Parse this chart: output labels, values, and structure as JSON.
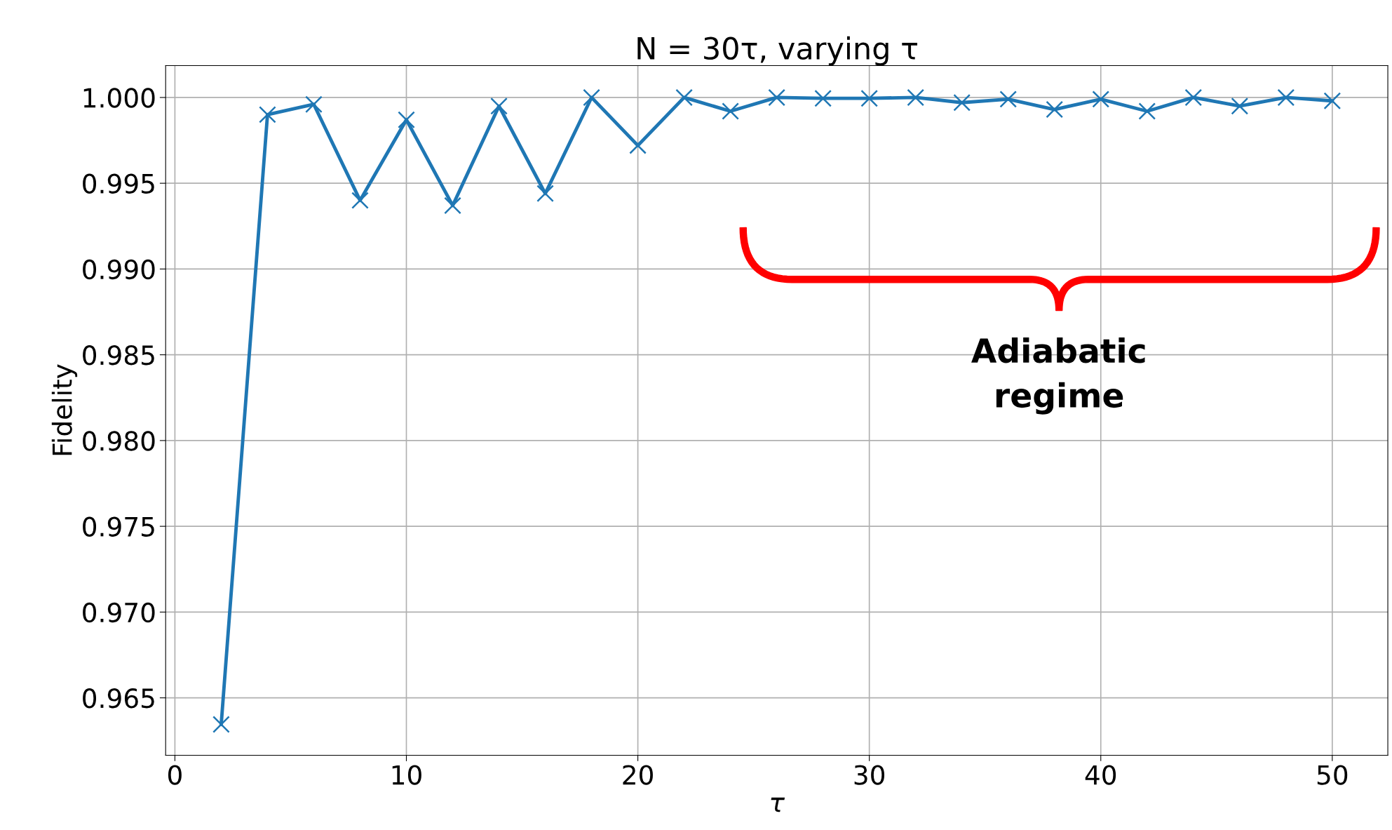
{
  "chart_data": {
    "type": "line",
    "title": "N = 30τ, varying τ",
    "xlabel": "τ",
    "ylabel": "Fidelity",
    "x": [
      2,
      4,
      6,
      8,
      10,
      12,
      14,
      16,
      18,
      20,
      22,
      24,
      26,
      28,
      30,
      32,
      34,
      36,
      38,
      40,
      42,
      44,
      46,
      48,
      50
    ],
    "series": [
      {
        "color": "#1f77b4",
        "values": [
          0.96345,
          0.999,
          0.9996,
          0.994,
          0.9987,
          0.9937,
          0.9995,
          0.9944,
          1.0,
          0.9972,
          1.0,
          0.9992,
          1.0,
          0.99995,
          0.99995,
          1.0,
          0.9997,
          0.9999,
          0.9993,
          0.9999,
          0.9992,
          1.0,
          0.9995,
          1.0,
          0.9998
        ]
      }
    ],
    "xlim": [
      -0.4,
      52.4
    ],
    "ylim": [
      0.96165,
      1.00186
    ],
    "xticks": [
      0,
      10,
      20,
      30,
      40,
      50
    ],
    "yticks": [
      {
        "value": 0.965,
        "label": "0.965"
      },
      {
        "value": 0.97,
        "label": "0.970"
      },
      {
        "value": 0.975,
        "label": "0.975"
      },
      {
        "value": 0.98,
        "label": "0.980"
      },
      {
        "value": 0.985,
        "label": "0.985"
      },
      {
        "value": 0.99,
        "label": "0.990"
      },
      {
        "value": 0.995,
        "label": "0.995"
      },
      {
        "value": 1.0,
        "label": "1.000"
      }
    ],
    "annotations": [
      "Adiabatic\nregime"
    ],
    "grid": true,
    "marker": "cross",
    "line_style": "solid",
    "legend": false
  }
}
